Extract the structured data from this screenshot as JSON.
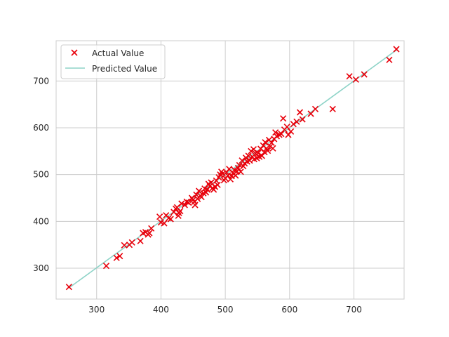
{
  "chart_data": {
    "type": "scatter",
    "title": "",
    "xlabel": "",
    "ylabel": "",
    "xlim": [
      237,
      778
    ],
    "ylim": [
      234,
      786
    ],
    "xticks": [
      300,
      400,
      500,
      600,
      700
    ],
    "yticks": [
      300,
      400,
      500,
      600,
      700
    ],
    "grid": true,
    "legend_position": "upper-left",
    "colors": {
      "actual": "#e8000b",
      "predicted": "#8dd3c7",
      "grid": "#cccccc",
      "axes": "#cccccc"
    },
    "series": [
      {
        "name": "Actual Value",
        "kind": "scatter",
        "marker": "x",
        "points": [
          [
            257,
            260
          ],
          [
            315,
            305
          ],
          [
            331,
            322
          ],
          [
            336,
            326
          ],
          [
            343,
            349
          ],
          [
            351,
            350
          ],
          [
            355,
            355
          ],
          [
            368,
            358
          ],
          [
            372,
            375
          ],
          [
            376,
            377
          ],
          [
            380,
            372
          ],
          [
            382,
            375
          ],
          [
            385,
            385
          ],
          [
            398,
            410
          ],
          [
            400,
            398
          ],
          [
            405,
            396
          ],
          [
            408,
            413
          ],
          [
            412,
            407
          ],
          [
            415,
            405
          ],
          [
            420,
            420
          ],
          [
            423,
            427
          ],
          [
            425,
            430
          ],
          [
            427,
            412
          ],
          [
            428,
            418
          ],
          [
            430,
            422
          ],
          [
            432,
            438
          ],
          [
            437,
            435
          ],
          [
            440,
            442
          ],
          [
            443,
            440
          ],
          [
            448,
            450
          ],
          [
            450,
            446
          ],
          [
            452,
            442
          ],
          [
            453,
            435
          ],
          [
            455,
            457
          ],
          [
            457,
            448
          ],
          [
            459,
            465
          ],
          [
            461,
            455
          ],
          [
            463,
            452
          ],
          [
            466,
            460
          ],
          [
            468,
            470
          ],
          [
            470,
            462
          ],
          [
            472,
            468
          ],
          [
            474,
            480
          ],
          [
            476,
            475
          ],
          [
            478,
            483
          ],
          [
            480,
            471
          ],
          [
            482,
            468
          ],
          [
            484,
            474
          ],
          [
            486,
            487
          ],
          [
            488,
            478
          ],
          [
            490,
            494
          ],
          [
            492,
            500
          ],
          [
            494,
            506
          ],
          [
            496,
            502
          ],
          [
            498,
            488
          ],
          [
            500,
            492
          ],
          [
            502,
            505
          ],
          [
            504,
            498
          ],
          [
            506,
            512
          ],
          [
            508,
            490
          ],
          [
            510,
            497
          ],
          [
            512,
            503
          ],
          [
            514,
            510
          ],
          [
            516,
            498
          ],
          [
            518,
            507
          ],
          [
            520,
            514
          ],
          [
            522,
            520
          ],
          [
            524,
            506
          ],
          [
            526,
            530
          ],
          [
            528,
            518
          ],
          [
            530,
            524
          ],
          [
            532,
            536
          ],
          [
            534,
            528
          ],
          [
            536,
            540
          ],
          [
            538,
            530
          ],
          [
            540,
            550
          ],
          [
            542,
            538
          ],
          [
            544,
            554
          ],
          [
            545,
            533
          ],
          [
            547,
            545
          ],
          [
            549,
            535
          ],
          [
            551,
            546
          ],
          [
            553,
            538
          ],
          [
            555,
            555
          ],
          [
            557,
            540
          ],
          [
            559,
            562
          ],
          [
            561,
            548
          ],
          [
            562,
            569
          ],
          [
            564,
            556
          ],
          [
            566,
            551
          ],
          [
            568,
            574
          ],
          [
            570,
            560
          ],
          [
            572,
            568
          ],
          [
            574,
            556
          ],
          [
            576,
            576
          ],
          [
            578,
            590
          ],
          [
            580,
            582
          ],
          [
            584,
            585
          ],
          [
            587,
            587
          ],
          [
            590,
            620
          ],
          [
            592,
            596
          ],
          [
            596,
            602
          ],
          [
            598,
            585
          ],
          [
            602,
            592
          ],
          [
            606,
            608
          ],
          [
            611,
            613
          ],
          [
            616,
            633
          ],
          [
            620,
            618
          ],
          [
            633,
            630
          ],
          [
            640,
            640
          ],
          [
            667,
            640
          ],
          [
            693,
            710
          ],
          [
            703,
            703
          ],
          [
            716,
            714
          ],
          [
            755,
            745
          ],
          [
            766,
            768
          ]
        ]
      },
      {
        "name": "Predicted Value",
        "kind": "line",
        "points": [
          [
            257,
            258
          ],
          [
            766,
            766
          ]
        ]
      }
    ]
  }
}
